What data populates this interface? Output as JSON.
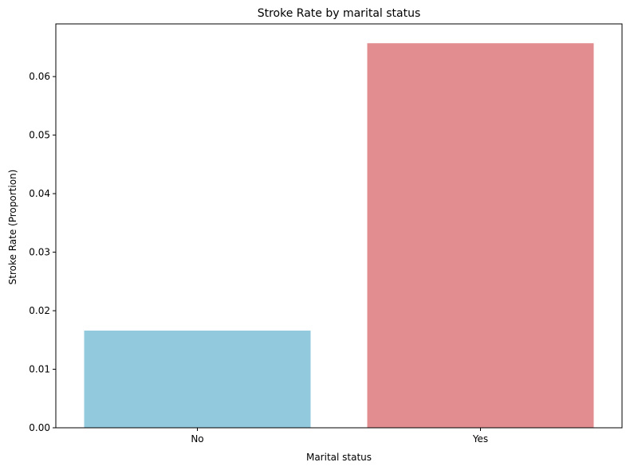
{
  "chart_data": {
    "type": "bar",
    "title": "Stroke Rate by marital status",
    "xlabel": "Marital status",
    "ylabel": "Stroke Rate (Proportion)",
    "categories": [
      "No",
      "Yes"
    ],
    "values": [
      0.0166,
      0.0657
    ],
    "colors": [
      "#92c9dd",
      "#e28d8f"
    ],
    "ylim": [
      0,
      0.069
    ],
    "yticks": [
      0.0,
      0.01,
      0.02,
      0.03,
      0.04,
      0.05,
      0.06
    ],
    "ytick_labels": [
      "0.00",
      "0.01",
      "0.02",
      "0.03",
      "0.04",
      "0.05",
      "0.06"
    ],
    "grid": false,
    "legend": "none"
  }
}
